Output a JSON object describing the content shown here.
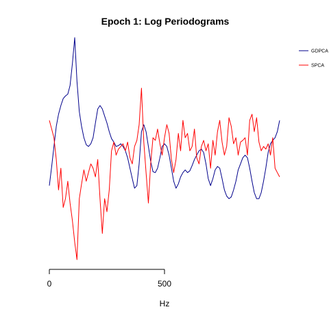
{
  "chart_data": {
    "type": "line",
    "title": "Epoch 1: Log Periodograms",
    "xlabel": "Hz",
    "ylabel": "",
    "x_ticks": [
      0,
      500
    ],
    "xlim": [
      0,
      1000
    ],
    "ylim": [
      -1.2,
      1.0
    ],
    "y_axis_shown": false,
    "grid": false,
    "legend_position": "top-right",
    "series": [
      {
        "name": "GDPCA",
        "color": "#00008b",
        "x": [
          0,
          10,
          20,
          30,
          40,
          50,
          60,
          70,
          80,
          90,
          100,
          110,
          120,
          130,
          140,
          150,
          160,
          170,
          180,
          190,
          200,
          210,
          220,
          230,
          240,
          250,
          260,
          270,
          280,
          290,
          300,
          310,
          320,
          330,
          340,
          350,
          360,
          370,
          380,
          390,
          400,
          410,
          420,
          430,
          440,
          450,
          460,
          470,
          480,
          490,
          500,
          510,
          520,
          530,
          540,
          550,
          560,
          570,
          580,
          590,
          600,
          610,
          620,
          630,
          640,
          650,
          660,
          670,
          680,
          690,
          700,
          710,
          720,
          730,
          740,
          750,
          760,
          770,
          780,
          790,
          800,
          810,
          820,
          830,
          840,
          850,
          860,
          870,
          880,
          890,
          900,
          910,
          920,
          930,
          940,
          950,
          960,
          970,
          980,
          990,
          1000
        ],
        "values": [
          -0.4,
          -0.18,
          0.05,
          0.28,
          0.42,
          0.52,
          0.6,
          0.63,
          0.65,
          0.75,
          1.0,
          1.3,
          0.8,
          0.45,
          0.28,
          0.15,
          0.07,
          0.05,
          0.08,
          0.15,
          0.32,
          0.48,
          0.52,
          0.48,
          0.4,
          0.32,
          0.22,
          0.14,
          0.1,
          0.05,
          0.06,
          0.08,
          0.05,
          0.0,
          -0.08,
          -0.2,
          -0.32,
          -0.43,
          -0.4,
          -0.15,
          0.22,
          0.3,
          0.22,
          0.05,
          -0.12,
          -0.24,
          -0.25,
          -0.2,
          -0.08,
          0.05,
          0.08,
          0.05,
          -0.05,
          -0.2,
          -0.35,
          -0.43,
          -0.38,
          -0.3,
          -0.25,
          -0.22,
          -0.25,
          -0.23,
          -0.17,
          -0.1,
          -0.05,
          0.0,
          0.02,
          -0.02,
          -0.15,
          -0.32,
          -0.4,
          -0.32,
          -0.22,
          -0.18,
          -0.2,
          -0.32,
          -0.45,
          -0.52,
          -0.55,
          -0.53,
          -0.45,
          -0.35,
          -0.22,
          -0.15,
          -0.08,
          -0.05,
          -0.08,
          -0.2,
          -0.35,
          -0.48,
          -0.55,
          -0.55,
          -0.48,
          -0.35,
          -0.2,
          -0.02,
          0.08,
          0.12,
          0.15,
          0.22,
          0.35
        ]
      },
      {
        "name": "SPCA",
        "color": "#ff0000",
        "x": [
          0,
          10,
          20,
          30,
          40,
          50,
          60,
          70,
          80,
          90,
          100,
          110,
          120,
          130,
          140,
          150,
          160,
          170,
          180,
          190,
          200,
          210,
          220,
          230,
          240,
          250,
          260,
          270,
          280,
          290,
          300,
          310,
          320,
          330,
          340,
          350,
          360,
          370,
          380,
          390,
          400,
          410,
          420,
          430,
          440,
          450,
          460,
          470,
          480,
          490,
          500,
          510,
          520,
          530,
          540,
          550,
          560,
          570,
          580,
          590,
          600,
          610,
          620,
          630,
          640,
          650,
          660,
          670,
          680,
          690,
          700,
          710,
          720,
          730,
          740,
          750,
          760,
          770,
          780,
          790,
          800,
          810,
          820,
          830,
          840,
          850,
          860,
          870,
          880,
          890,
          900,
          910,
          920,
          930,
          940,
          950,
          960,
          970,
          980,
          990,
          1000
        ],
        "values": [
          0.35,
          0.25,
          0.15,
          -0.1,
          -0.45,
          -0.2,
          -0.65,
          -0.55,
          -0.35,
          -0.6,
          -0.8,
          -1.05,
          -1.25,
          -0.55,
          -0.38,
          -0.22,
          -0.35,
          -0.25,
          -0.15,
          -0.2,
          -0.3,
          -0.1,
          -0.55,
          -0.95,
          -0.55,
          -0.7,
          -0.45,
          0.0,
          0.1,
          -0.05,
          0.02,
          0.05,
          0.08,
          0.0,
          0.1,
          -0.08,
          -0.15,
          0.05,
          0.12,
          0.3,
          0.72,
          0.1,
          -0.25,
          -0.6,
          -0.15,
          0.15,
          0.12,
          0.25,
          0.08,
          -0.05,
          0.15,
          0.3,
          0.2,
          -0.1,
          -0.25,
          -0.1,
          0.2,
          0.0,
          0.35,
          0.15,
          0.2,
          0.0,
          0.05,
          0.25,
          -0.08,
          -0.15,
          0.05,
          0.12,
          0.0,
          0.08,
          -0.2,
          0.12,
          -0.05,
          0.22,
          0.35,
          0.1,
          -0.05,
          0.05,
          0.38,
          0.28,
          0.08,
          0.15,
          -0.05,
          0.1,
          0.12,
          0.15,
          -0.05,
          0.35,
          0.42,
          0.22,
          0.38,
          0.1,
          0.0,
          0.05,
          0.02,
          0.08,
          -0.05,
          0.15,
          -0.2,
          -0.25,
          -0.3
        ]
      }
    ]
  }
}
